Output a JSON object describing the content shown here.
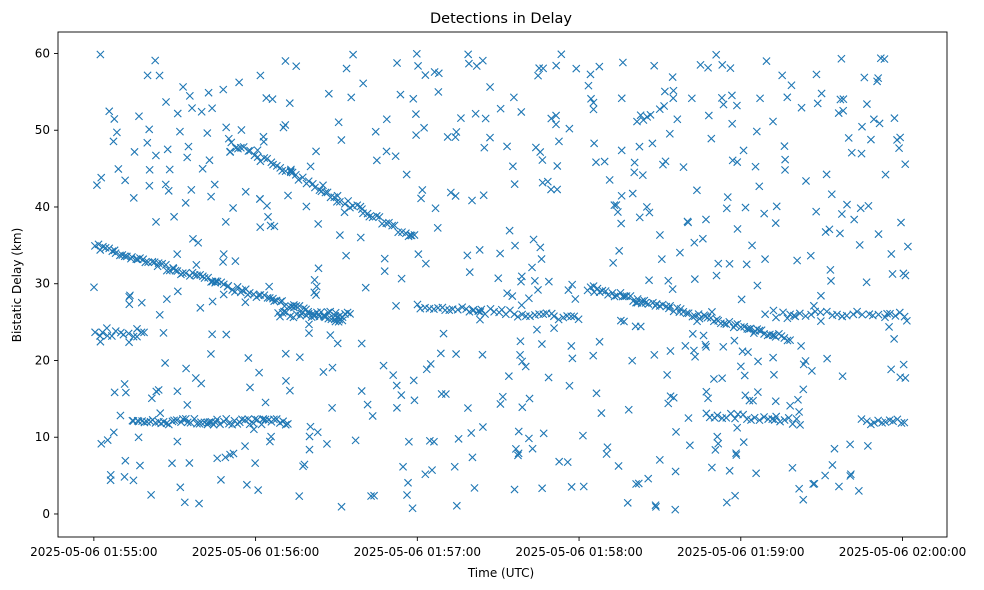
{
  "chart_data": {
    "type": "scatter",
    "title": "Detections in Delay",
    "xlabel": "Time (UTC)",
    "ylabel": "Bistatic Delay (km)",
    "x_unit": "seconds",
    "x_ticks": [
      {
        "value": 0,
        "label": "2025-05-06 01:55:00"
      },
      {
        "value": 60,
        "label": "2025-05-06 01:56:00"
      },
      {
        "value": 120,
        "label": "2025-05-06 01:57:00"
      },
      {
        "value": 180,
        "label": "2025-05-06 01:58:00"
      },
      {
        "value": 240,
        "label": "2025-05-06 01:59:00"
      },
      {
        "value": 300,
        "label": "2025-05-06 02:00:00"
      }
    ],
    "xlim": [
      -13.3,
      316.5
    ],
    "y_ticks": [
      0,
      10,
      20,
      30,
      40,
      50,
      60
    ],
    "ylim": [
      -3.0,
      62.8
    ],
    "marker": "x",
    "color": "#1f77b4",
    "grid": false,
    "series": [
      {
        "name": "",
        "tracks": [
          {
            "x0": 0.5,
            "y0": 35.0,
            "x1": 92,
            "y1": 25.0,
            "step": 1.0
          },
          {
            "x0": 50,
            "y0": 48.5,
            "x1": 119,
            "y1": 36.0,
            "step": 1.2
          },
          {
            "x0": 183,
            "y0": 29.5,
            "x1": 258,
            "y1": 22.8,
            "step": 1.0
          },
          {
            "x0": 0.5,
            "y0": 23.5,
            "x1": 19,
            "y1": 23.5,
            "step": 1.5
          },
          {
            "x0": 14,
            "y0": 12.0,
            "x1": 72,
            "y1": 12.0,
            "step": 1.0
          },
          {
            "x0": 68,
            "y0": 26.0,
            "x1": 95,
            "y1": 26.0,
            "step": 1.2
          },
          {
            "x0": 120,
            "y0": 27.0,
            "x1": 180,
            "y1": 25.5,
            "step": 1.5
          },
          {
            "x0": 256,
            "y0": 26.0,
            "x1": 301,
            "y1": 26.0,
            "step": 2.0
          },
          {
            "x0": 227,
            "y0": 13.0,
            "x1": 262,
            "y1": 12.0,
            "step": 1.5
          },
          {
            "x0": 285,
            "y0": 12.0,
            "x1": 301,
            "y1": 12.0,
            "step": 1.5
          }
        ],
        "clutter": {
          "count": 640,
          "x_range": [
            0,
            302
          ],
          "y_range": [
            0.5,
            60
          ],
          "seed": 20250506
        }
      }
    ]
  }
}
